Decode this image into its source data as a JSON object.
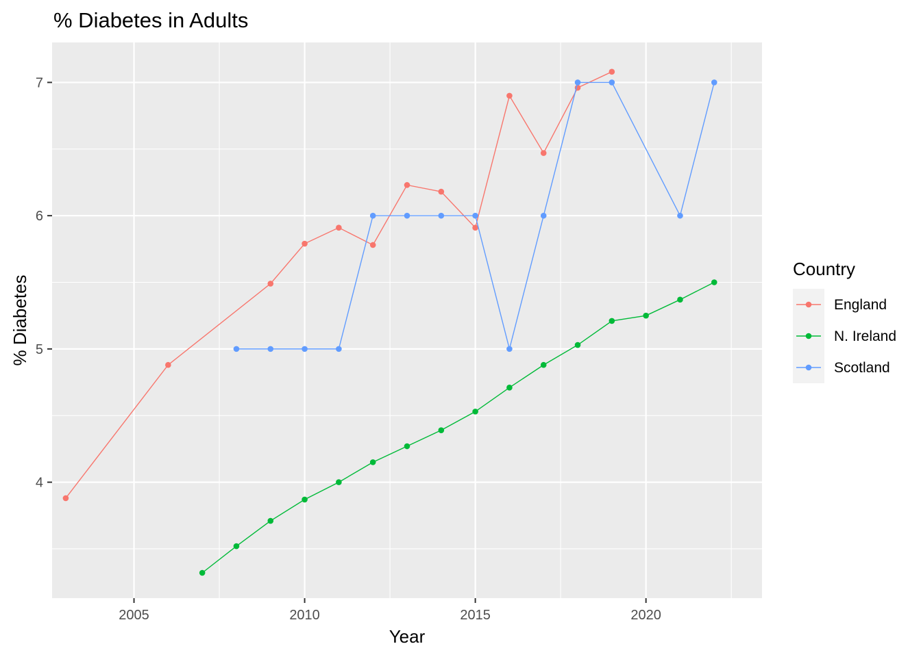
{
  "chart_data": {
    "type": "line",
    "title": "% Diabetes in Adults",
    "xlabel": "Year",
    "ylabel": "% Diabetes",
    "xlim": [
      2002.6,
      2023.4
    ],
    "ylim": [
      3.13,
      7.3
    ],
    "x_ticks": [
      2005,
      2010,
      2015,
      2020
    ],
    "x_tick_labels": [
      "2005",
      "2010",
      "2015",
      "2020"
    ],
    "y_ticks": [
      4,
      5,
      6,
      7
    ],
    "y_tick_labels": [
      "4",
      "5",
      "6",
      "7"
    ],
    "grid": true,
    "legend_title": "Country",
    "legend_position": "right",
    "series": [
      {
        "name": "England",
        "color": "#F8766D",
        "x": [
          2003,
          2006,
          2009,
          2010,
          2011,
          2012,
          2013,
          2014,
          2015,
          2016,
          2017,
          2018,
          2019
        ],
        "y": [
          3.88,
          4.88,
          5.49,
          5.79,
          5.91,
          5.78,
          6.23,
          6.18,
          5.91,
          6.9,
          6.47,
          6.96,
          7.08
        ]
      },
      {
        "name": "N. Ireland",
        "color": "#00BA38",
        "x": [
          2007,
          2008,
          2009,
          2010,
          2011,
          2012,
          2013,
          2014,
          2015,
          2016,
          2017,
          2018,
          2019,
          2020,
          2021,
          2022
        ],
        "y": [
          3.32,
          3.52,
          3.71,
          3.87,
          4.0,
          4.15,
          4.27,
          4.39,
          4.53,
          4.71,
          4.88,
          5.03,
          5.21,
          5.25,
          5.37,
          5.5
        ]
      },
      {
        "name": "Scotland",
        "color": "#619CFF",
        "x": [
          2008,
          2009,
          2010,
          2011,
          2012,
          2013,
          2014,
          2015,
          2016,
          2017,
          2018,
          2019,
          2021,
          2022
        ],
        "y": [
          5,
          5,
          5,
          5,
          6,
          6,
          6,
          6,
          5,
          6,
          7,
          7,
          6,
          7
        ]
      }
    ]
  }
}
